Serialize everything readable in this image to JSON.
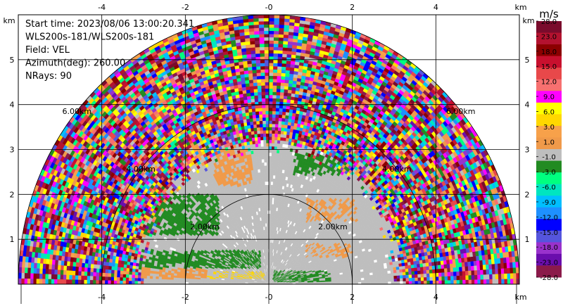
{
  "chart_data": {
    "type": "heatmap",
    "subtype": "ppi-radar-sector",
    "info_lines": [
      "Start time: 2023/08/06 13:00:20.341",
      "WLS200s-181/WLS200s-181",
      "Field: VEL",
      "Azimuth(deg): 260.00",
      "NRays: 90"
    ],
    "x_unit": "km",
    "y_unit": "km",
    "xlim": [
      -6.0,
      6.0
    ],
    "ylim": [
      0.0,
      6.0
    ],
    "x_ticks": [
      -4,
      -2,
      0,
      2,
      4
    ],
    "y_ticks": [
      1,
      2,
      3,
      4,
      5
    ],
    "x_tick_labels": [
      "-4",
      "-2",
      "-0",
      "2",
      "4"
    ],
    "y_tick_labels": [
      "1",
      "2",
      "3",
      "4",
      "5"
    ],
    "grid": true,
    "range_rings_km": [
      2,
      4,
      6
    ],
    "ring_labels": [
      "2.00km",
      "4.00km",
      "6.00km"
    ],
    "max_range_km": 6.0,
    "colorbar": {
      "unit": "m/s",
      "labels": [
        "28.0",
        "23.0",
        "18.0",
        "15.0",
        "12.0",
        "9.0",
        "6.0",
        "3.0",
        "1.0",
        "-1.0",
        "-3.0",
        "-6.0",
        "-9.0",
        "-12.0",
        "-15.0",
        "-18.0",
        "-23.0",
        "-28.0"
      ],
      "colors": [
        "#7a0b2c",
        "#b3122f",
        "#8b0000",
        "#c8102e",
        "#e8484a",
        "#f77070",
        "#ff00ff",
        "#ffff00",
        "#ffd700",
        "#f7a14a",
        "#f09a4a",
        "#bebebe",
        "#228b22",
        "#00ff7f",
        "#00e5c0",
        "#00bfff",
        "#1e90ff",
        "#0000ff",
        "#5555dd",
        "#9932cc",
        "#6a0dad",
        "#8b1a4a"
      ]
    },
    "features": {
      "near_range_green": "negative velocity bands, about -1 to -3 m/s, west half 0.3-2.6 km",
      "near_range_orange": "positive velocity bands, about 1 to 3 m/s",
      "near_range_gray": "near-zero velocity (-1 to 1 m/s) inside about 3 km",
      "far_range": "noisy, randomly colored gates beyond about 3.5 km"
    }
  }
}
